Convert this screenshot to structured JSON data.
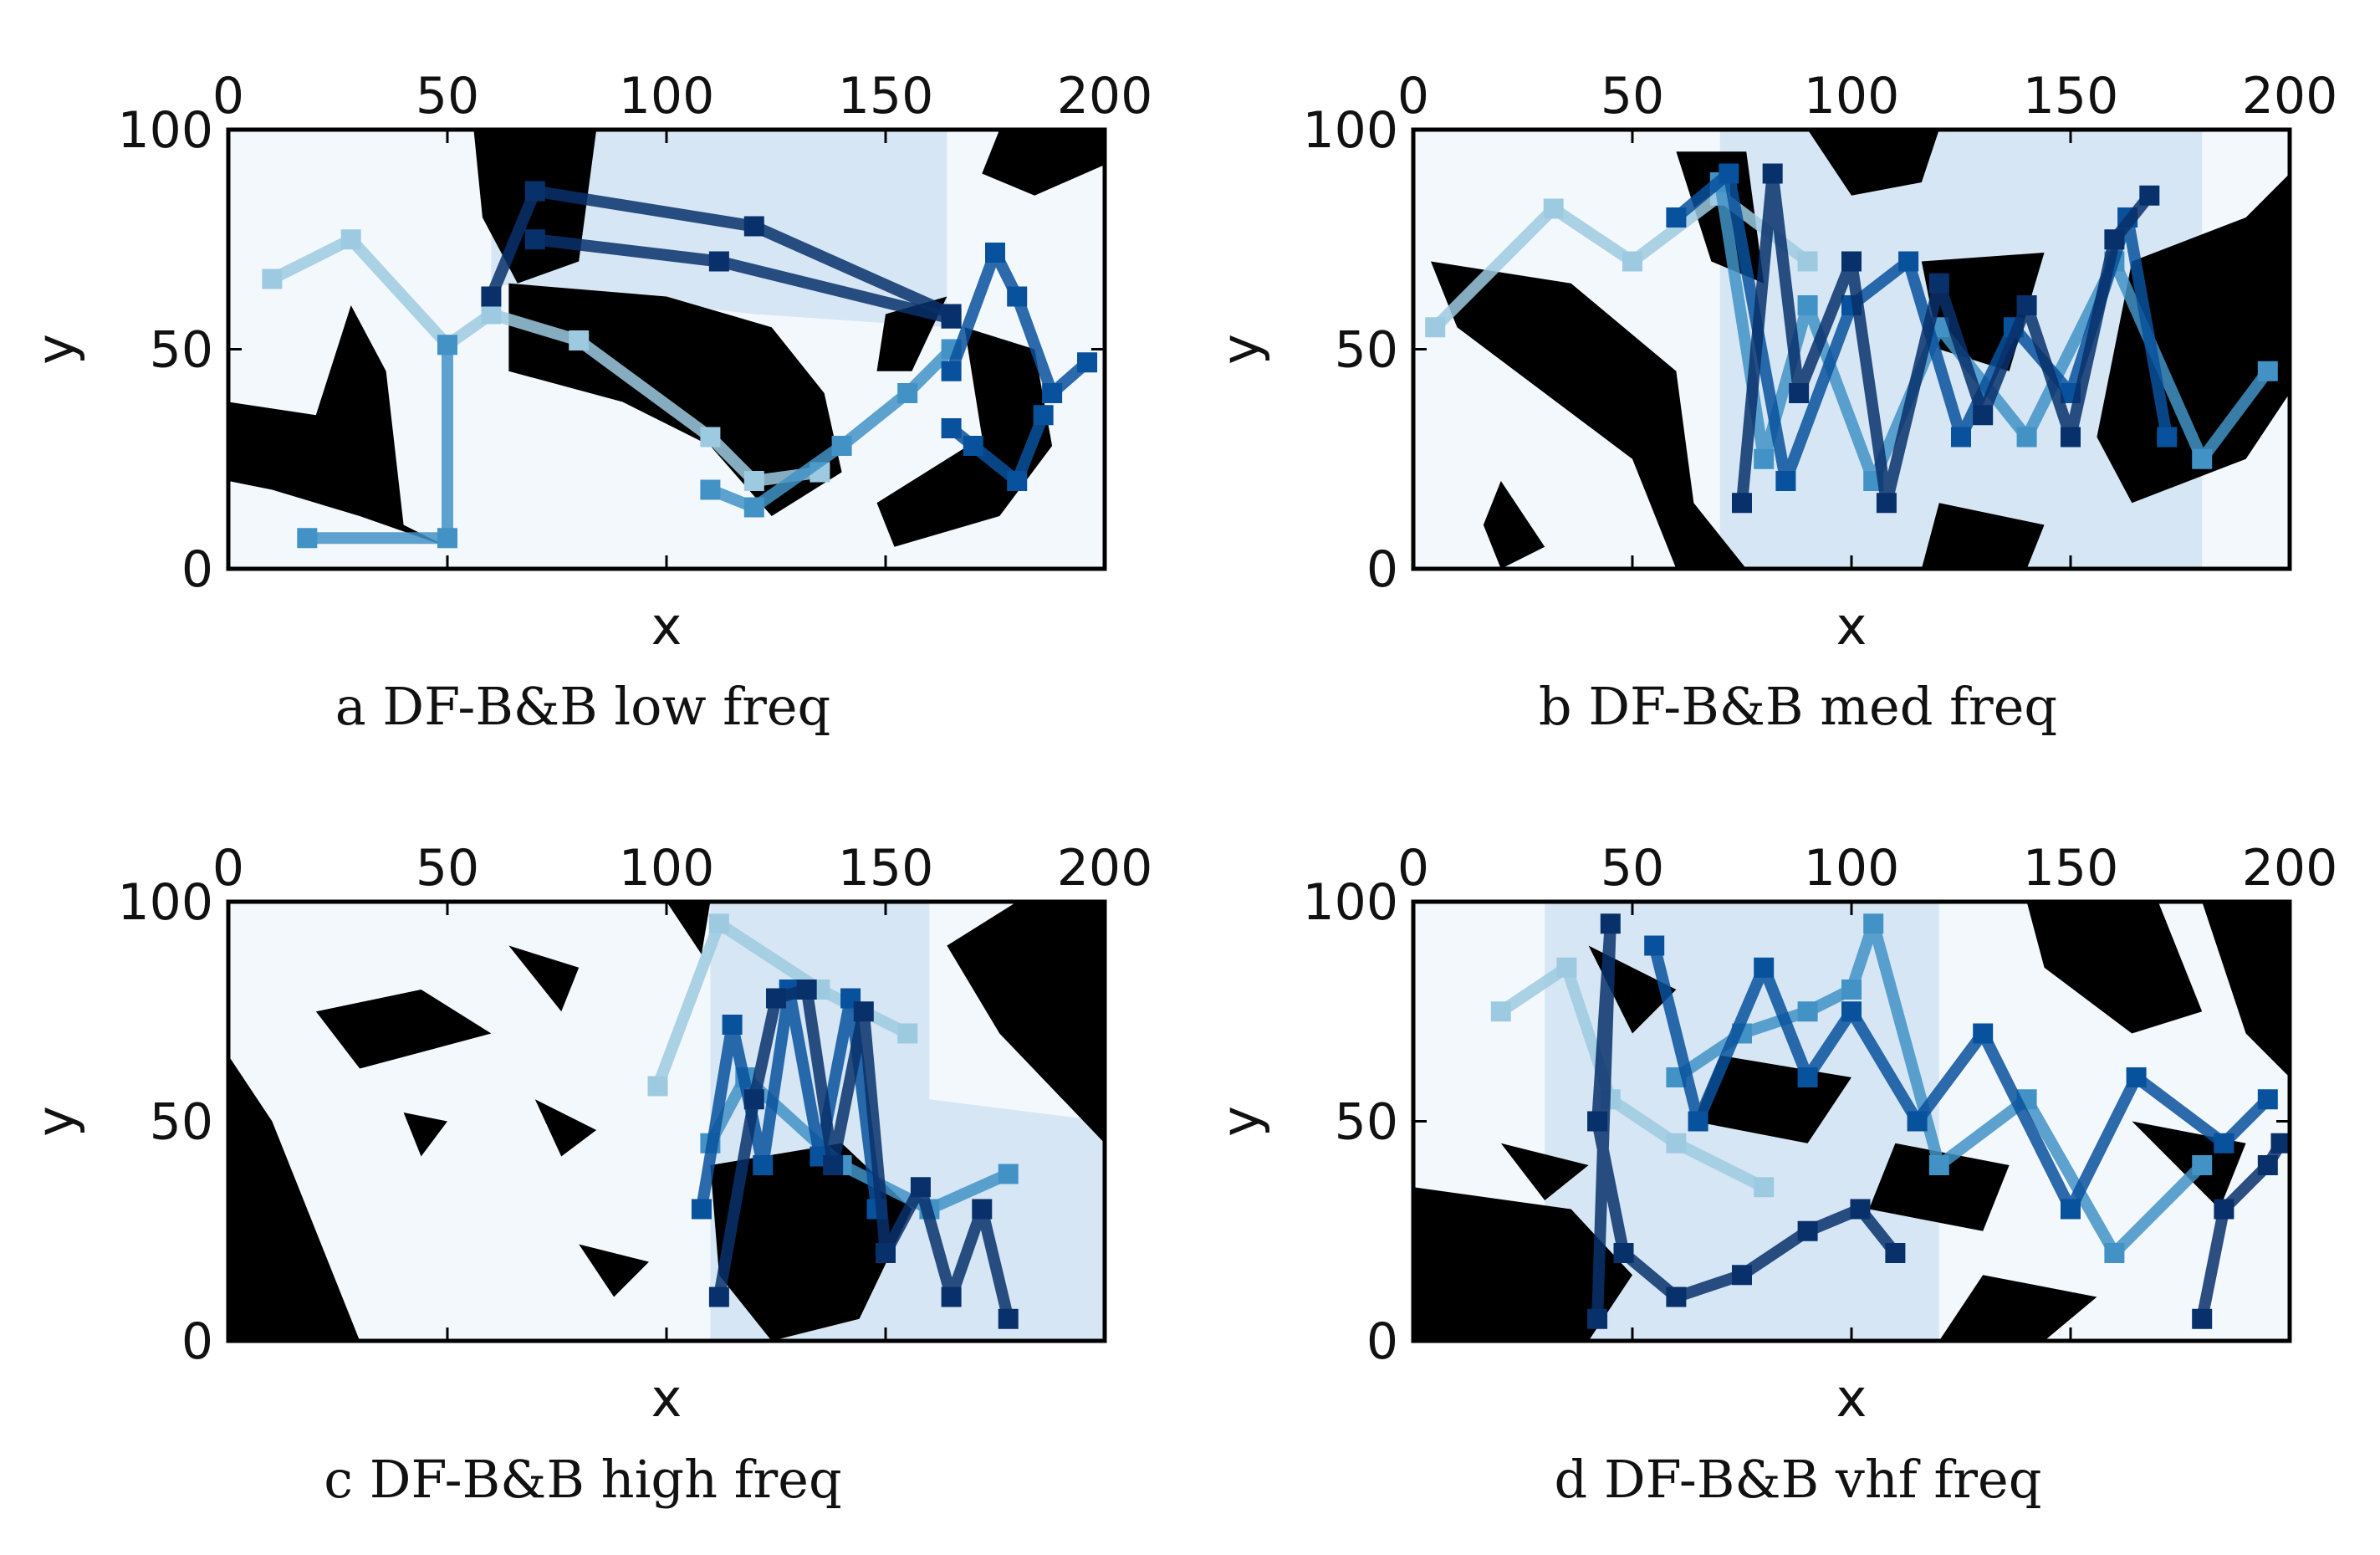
{
  "figure": {
    "colors": {
      "obstacle": "#000000",
      "free": "#f3f8fd",
      "region_light": "#d6e6f4",
      "region_mid": "#9ecae1",
      "path_light": "#9ecae1",
      "path_mid": "#4292c6",
      "path_dark": "#08519c",
      "path_darkest": "#08306b"
    }
  },
  "chart_data": [
    {
      "type": "line",
      "caption": "a  DF-B&B low freq",
      "xlabel": "x",
      "ylabel": "y",
      "xlim": [
        0,
        200
      ],
      "ylim": [
        0,
        100
      ],
      "xticks": [
        0,
        50,
        100,
        150,
        200
      ],
      "yticks": [
        0,
        50,
        100
      ],
      "series": [
        {
          "shade": 0,
          "x": [
            10,
            28,
            50,
            60,
            80,
            110,
            120,
            135
          ],
          "y": [
            66,
            75,
            51,
            58,
            52,
            30,
            20,
            22
          ]
        },
        {
          "shade": 1,
          "x": [
            18,
            50,
            50
          ],
          "y": [
            7,
            7,
            51
          ]
        },
        {
          "shade": 1,
          "x": [
            110,
            120,
            140,
            155,
            165
          ],
          "y": [
            18,
            14,
            28,
            40,
            50
          ]
        },
        {
          "shade": 2,
          "x": [
            165,
            175,
            180,
            188,
            196
          ],
          "y": [
            45,
            72,
            62,
            40,
            47
          ]
        },
        {
          "shade": 2,
          "x": [
            165,
            170,
            180,
            186
          ],
          "y": [
            32,
            28,
            20,
            35
          ]
        },
        {
          "shade": 3,
          "x": [
            60,
            70,
            120,
            165
          ],
          "y": [
            62,
            86,
            78,
            58
          ]
        },
        {
          "shade": 3,
          "x": [
            70,
            112,
            165
          ],
          "y": [
            75,
            70,
            57
          ]
        }
      ]
    },
    {
      "type": "line",
      "caption": "b  DF-B&B med freq",
      "xlabel": "x",
      "ylabel": "y",
      "xlim": [
        0,
        200
      ],
      "ylim": [
        0,
        100
      ],
      "xticks": [
        0,
        50,
        100,
        150,
        200
      ],
      "yticks": [
        0,
        50,
        100
      ],
      "series": [
        {
          "shade": 0,
          "x": [
            5,
            32,
            50,
            70,
            90
          ],
          "y": [
            55,
            82,
            70,
            85,
            70
          ]
        },
        {
          "shade": 1,
          "x": [
            70,
            80,
            90,
            105,
            120,
            140,
            160,
            180,
            195
          ],
          "y": [
            88,
            25,
            60,
            20,
            55,
            30,
            70,
            25,
            45
          ]
        },
        {
          "shade": 2,
          "x": [
            60,
            72,
            85,
            100,
            113,
            125,
            137,
            150,
            163,
            172
          ],
          "y": [
            80,
            90,
            20,
            60,
            70,
            30,
            55,
            40,
            80,
            30
          ]
        },
        {
          "shade": 3,
          "x": [
            75,
            82,
            88,
            100,
            108,
            120,
            130,
            140,
            150,
            160,
            168
          ],
          "y": [
            15,
            90,
            40,
            70,
            15,
            65,
            35,
            60,
            30,
            75,
            85
          ]
        }
      ]
    },
    {
      "type": "line",
      "caption": "c  DF-B&B high freq",
      "xlabel": "x",
      "ylabel": "y",
      "xlim": [
        0,
        200
      ],
      "ylim": [
        0,
        100
      ],
      "xticks": [
        0,
        50,
        100,
        150,
        200
      ],
      "yticks": [
        0,
        50,
        100
      ],
      "series": [
        {
          "shade": 0,
          "x": [
            98,
            112,
            135,
            155
          ],
          "y": [
            58,
            95,
            80,
            70
          ]
        },
        {
          "shade": 1,
          "x": [
            110,
            118,
            140,
            160,
            178
          ],
          "y": [
            45,
            60,
            40,
            30,
            38
          ]
        },
        {
          "shade": 2,
          "x": [
            108,
            115,
            122,
            128,
            135,
            142,
            148
          ],
          "y": [
            30,
            72,
            40,
            80,
            42,
            78,
            30
          ]
        },
        {
          "shade": 3,
          "x": [
            112,
            120,
            125,
            132,
            138,
            145,
            150,
            158,
            165,
            172,
            178
          ],
          "y": [
            10,
            55,
            78,
            80,
            40,
            75,
            20,
            35,
            10,
            30,
            5
          ]
        }
      ]
    },
    {
      "type": "line",
      "caption": "d  DF-B&B vhf freq",
      "xlabel": "x",
      "ylabel": "y",
      "xlim": [
        0,
        200
      ],
      "ylim": [
        0,
        100
      ],
      "xticks": [
        0,
        50,
        100,
        150,
        200
      ],
      "yticks": [
        0,
        50,
        100
      ],
      "series": [
        {
          "shade": 0,
          "x": [
            20,
            35,
            45,
            60,
            80
          ],
          "y": [
            75,
            85,
            55,
            45,
            35
          ]
        },
        {
          "shade": 1,
          "x": [
            60,
            75,
            90,
            100,
            105,
            120,
            140,
            160,
            180
          ],
          "y": [
            60,
            70,
            75,
            80,
            95,
            40,
            55,
            20,
            40
          ]
        },
        {
          "shade": 2,
          "x": [
            55,
            65,
            80,
            90,
            100,
            115,
            130,
            150,
            165,
            185,
            195
          ],
          "y": [
            90,
            50,
            85,
            60,
            75,
            50,
            70,
            30,
            60,
            45,
            55
          ]
        },
        {
          "shade": 3,
          "x": [
            42,
            45,
            42,
            48,
            60,
            75,
            90,
            102,
            110
          ],
          "y": [
            5,
            95,
            50,
            20,
            10,
            15,
            25,
            30,
            20
          ]
        },
        {
          "shade": 3,
          "x": [
            180,
            185,
            195,
            198
          ],
          "y": [
            5,
            30,
            40,
            45
          ]
        }
      ]
    }
  ]
}
